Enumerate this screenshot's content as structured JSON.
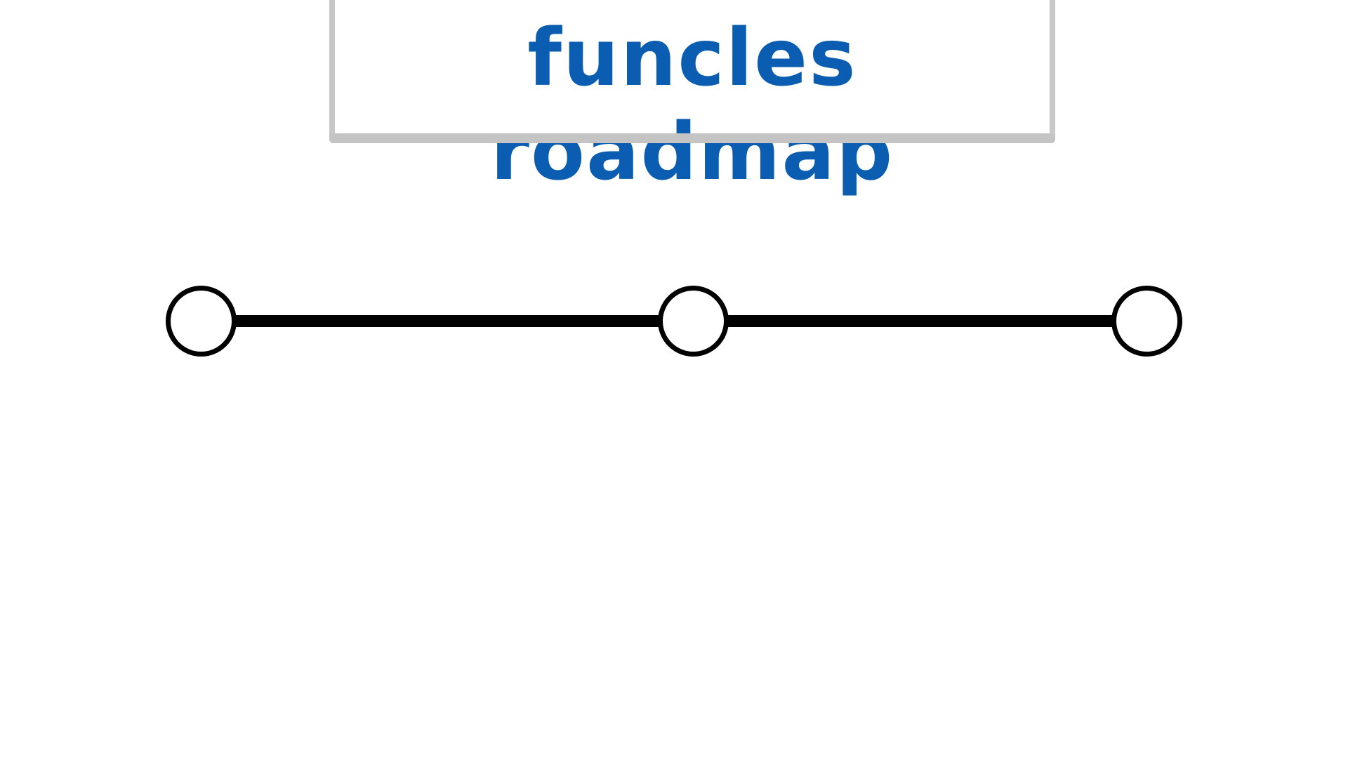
{
  "title": "funcles roadmap",
  "colors": {
    "title_text": "#0a5db1",
    "card_border": "#c4c4c4",
    "line": "#000000",
    "node_fill": "#ffffff",
    "node_stroke": "#000000"
  },
  "milestones": [
    {
      "label": ""
    },
    {
      "label": ""
    },
    {
      "label": ""
    }
  ]
}
